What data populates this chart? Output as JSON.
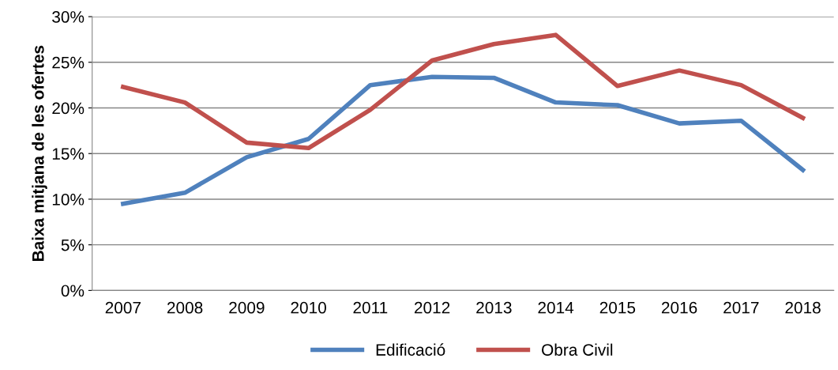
{
  "chart_data": {
    "type": "line",
    "ylabel": "Baixa mitjana de les ofertes",
    "categories": [
      "2007",
      "2008",
      "2009",
      "2010",
      "2011",
      "2012",
      "2013",
      "2014",
      "2015",
      "2016",
      "2017",
      "2018"
    ],
    "series": [
      {
        "name": "Edificació",
        "color": "#4f81bd",
        "values": [
          9.5,
          10.7,
          14.6,
          16.6,
          22.5,
          23.4,
          23.3,
          20.6,
          20.3,
          18.3,
          18.6,
          13.2
        ]
      },
      {
        "name": "Obra Civil",
        "color": "#c0504d",
        "values": [
          22.3,
          20.6,
          16.2,
          15.6,
          19.8,
          25.2,
          27.0,
          28.0,
          22.4,
          24.1,
          22.5,
          18.9
        ]
      }
    ],
    "ylim": [
      0,
      30
    ],
    "yticks": [
      {
        "value": 0,
        "label": "0%"
      },
      {
        "value": 5,
        "label": "5%"
      },
      {
        "value": 10,
        "label": "10%"
      },
      {
        "value": 15,
        "label": "15%"
      },
      {
        "value": 20,
        "label": "20%"
      },
      {
        "value": 25,
        "label": "25%"
      },
      {
        "value": 30,
        "label": "30%"
      }
    ],
    "grid": "y",
    "legend": "bottom",
    "marker": "none",
    "line_style": "solid"
  }
}
